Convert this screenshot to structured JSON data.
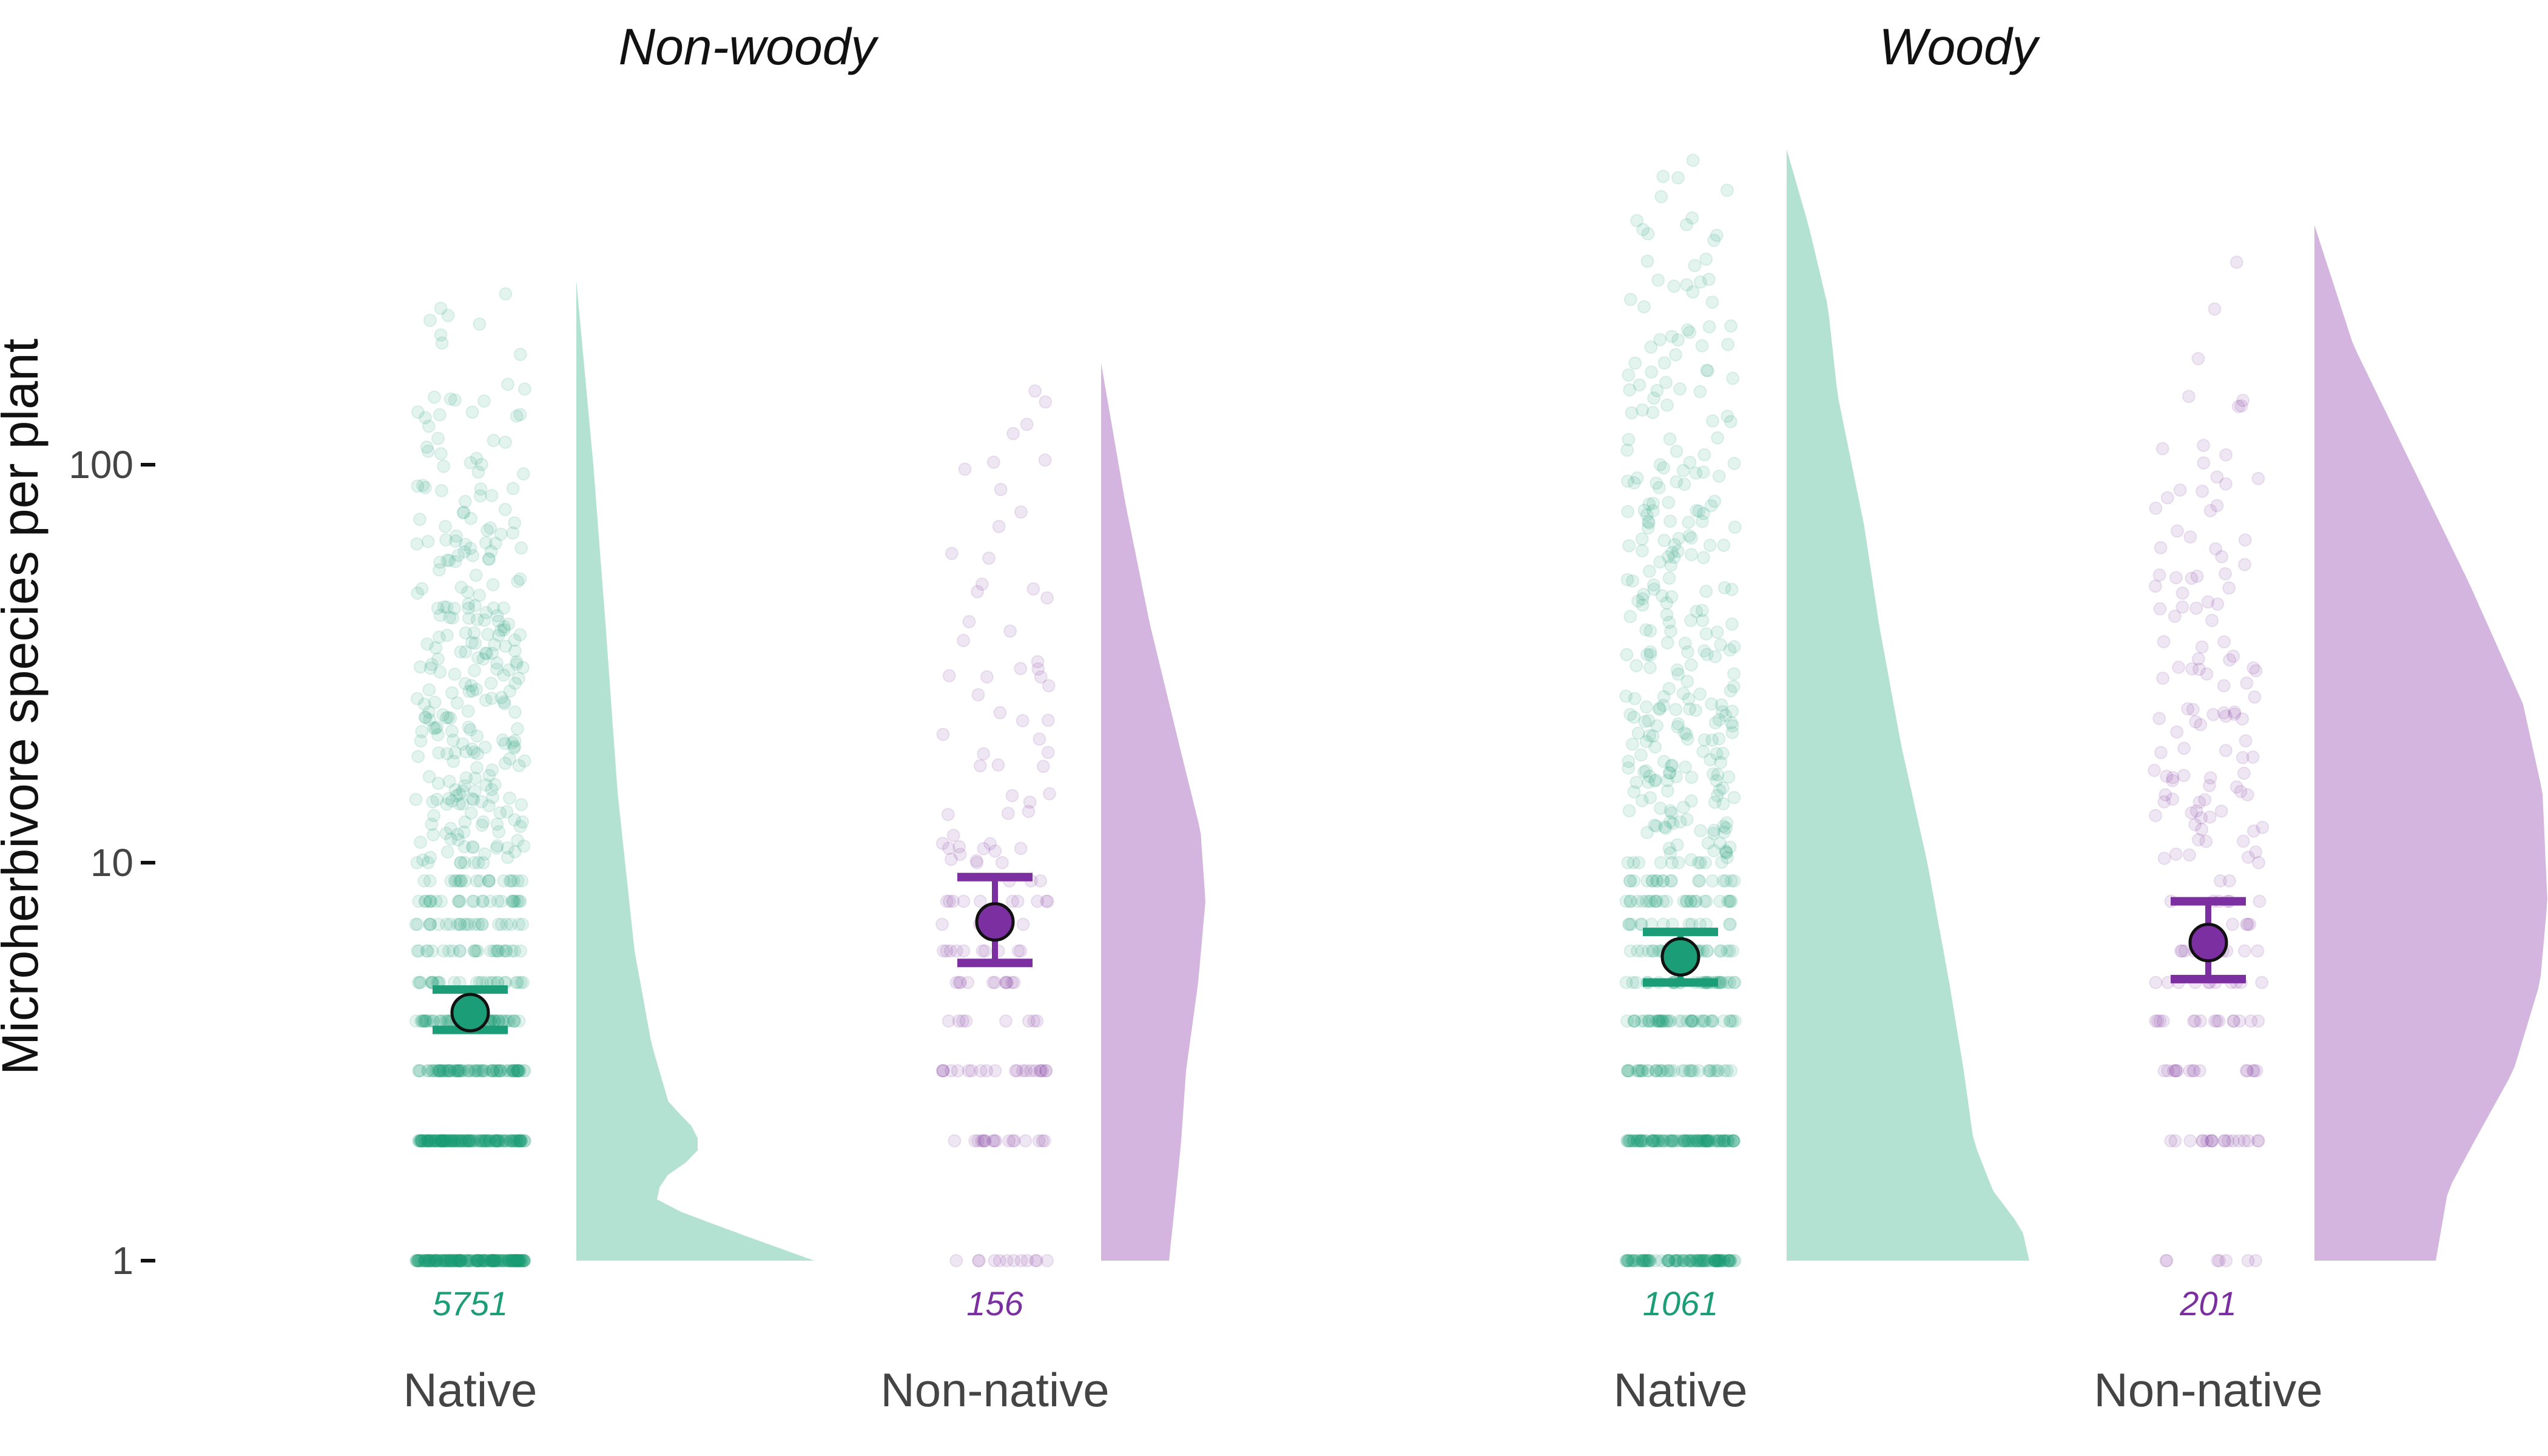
{
  "chart_data": {
    "type": "raincloud",
    "title": "",
    "ylabel": "Microherbivore species per plant",
    "xlabel": "",
    "y_scale": "log10",
    "ylim": [
      1,
      700
    ],
    "yticks": [
      1,
      10,
      100
    ],
    "ytick_labels": [
      "1",
      "10",
      "100"
    ],
    "grid": false,
    "legend": "none",
    "colors": {
      "Native": "#1b9e77",
      "Non-native": "#7b2fa0",
      "Native_fill": "#b3e2d2",
      "Non-native_fill": "#d3b5e0"
    },
    "facets": [
      {
        "title": "Non-woody",
        "groups": [
          {
            "name": "Native",
            "n_label": "5751",
            "mean": 4.2,
            "ci": [
              3.8,
              4.8
            ],
            "max": 290,
            "density": [
              [
                1,
                0.98
              ],
              [
                1.2,
                0.62
              ],
              [
                1.4,
                0.33
              ],
              [
                1.6,
                0.35
              ],
              [
                1.85,
                0.5
              ],
              [
                2.1,
                0.5
              ],
              [
                2.5,
                0.38
              ],
              [
                3.5,
                0.31
              ],
              [
                6,
                0.24
              ],
              [
                15,
                0.17
              ],
              [
                40,
                0.12
              ],
              [
                100,
                0.07
              ],
              [
                290,
                0
              ]
            ]
          },
          {
            "name": "Non-native",
            "n_label": "156",
            "mean": 7.1,
            "ci": [
              5.6,
              9.2
            ],
            "max": 180,
            "density": [
              [
                1,
                0.28
              ],
              [
                1.5,
                0.31
              ],
              [
                2,
                0.33
              ],
              [
                3,
                0.35
              ],
              [
                5,
                0.4
              ],
              [
                8,
                0.43
              ],
              [
                12,
                0.41
              ],
              [
                20,
                0.32
              ],
              [
                40,
                0.2
              ],
              [
                80,
                0.1
              ],
              [
                180,
                0
              ]
            ]
          }
        ]
      },
      {
        "title": "Woody",
        "groups": [
          {
            "name": "Native",
            "n_label": "1061",
            "mean": 5.8,
            "ci": [
              5.0,
              6.7
            ],
            "max": 620,
            "density": [
              [
                1,
                1.0
              ],
              [
                1.2,
                0.97
              ],
              [
                1.5,
                0.85
              ],
              [
                2,
                0.77
              ],
              [
                3,
                0.73
              ],
              [
                5,
                0.67
              ],
              [
                10,
                0.58
              ],
              [
                20,
                0.47
              ],
              [
                40,
                0.38
              ],
              [
                70,
                0.32
              ],
              [
                150,
                0.21
              ],
              [
                250,
                0.17
              ],
              [
                400,
                0.09
              ],
              [
                620,
                0
              ]
            ]
          },
          {
            "name": "Non-native",
            "n_label": "201",
            "mean": 6.3,
            "ci": [
              5.1,
              8.0
            ],
            "max": 400,
            "density": [
              [
                1,
                0.5
              ],
              [
                1.5,
                0.55
              ],
              [
                2,
                0.66
              ],
              [
                3,
                0.82
              ],
              [
                5,
                0.93
              ],
              [
                8,
                0.96
              ],
              [
                15,
                0.94
              ],
              [
                25,
                0.86
              ],
              [
                50,
                0.64
              ],
              [
                100,
                0.4
              ],
              [
                200,
                0.16
              ],
              [
                400,
                0
              ]
            ]
          }
        ]
      }
    ]
  }
}
